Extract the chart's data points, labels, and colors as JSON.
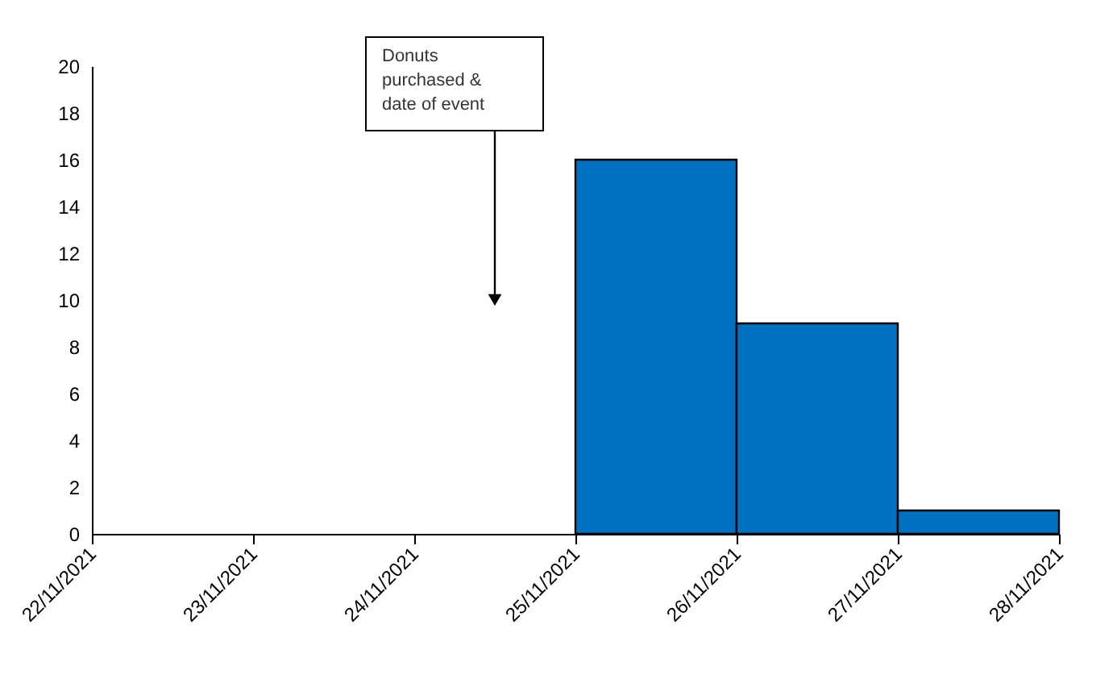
{
  "chart_data": {
    "type": "histogram",
    "bins": [
      "2021-11-22",
      "2021-11-23",
      "2021-11-24",
      "2021-11-25",
      "2021-11-26",
      "2021-11-27",
      "2021-11-28"
    ],
    "values": [
      0,
      0,
      0,
      16,
      9,
      1
    ],
    "color": "#0070c0",
    "xlim": [
      "2021-11-22",
      "2021-11-28"
    ],
    "xticks": [
      {
        "value": "2021-11-22",
        "label": "22/11/2021"
      },
      {
        "value": "2021-11-23",
        "label": "23/11/2021"
      },
      {
        "value": "2021-11-24",
        "label": "24/11/2021"
      },
      {
        "value": "2021-11-25",
        "label": "25/11/2021"
      },
      {
        "value": "2021-11-26",
        "label": "26/11/2021"
      },
      {
        "value": "2021-11-27",
        "label": "27/11/2021"
      },
      {
        "value": "2021-11-28",
        "label": "28/11/2021"
      }
    ],
    "ylim": [
      0,
      20
    ],
    "yticks": [
      0,
      2,
      4,
      6,
      8,
      10,
      12,
      14,
      16,
      18,
      20
    ],
    "annotations": [
      {
        "text": "Donuts purchased & date of event",
        "x": "2021-11-24T12:00",
        "y": 10
      }
    ],
    "grid": false
  }
}
